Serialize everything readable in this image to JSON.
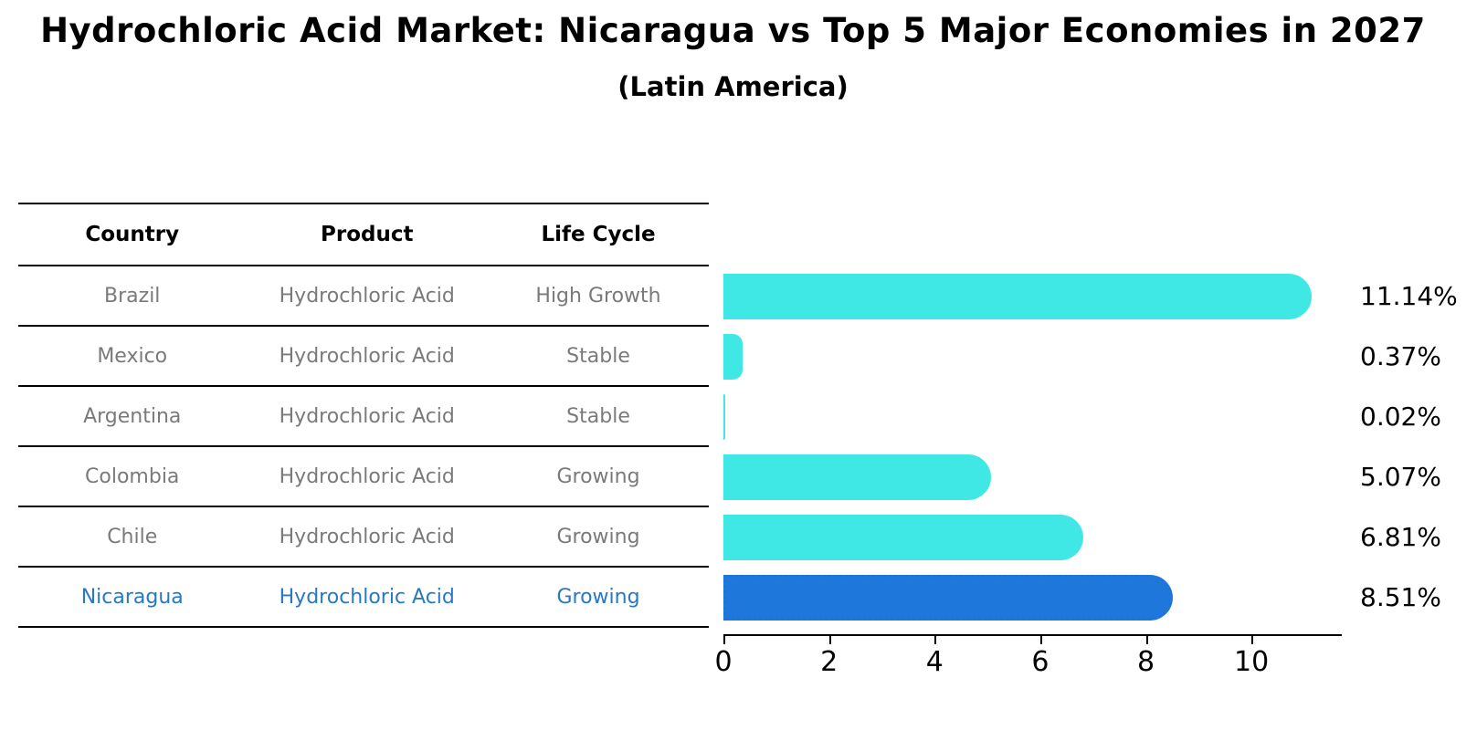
{
  "title": "Hydrochloric Acid Market: Nicaragua vs Top 5 Major Economies in 2027",
  "subtitle": "(Latin America)",
  "table": {
    "headers": [
      "Country",
      "Product",
      "Life Cycle"
    ],
    "rows": [
      {
        "country": "Brazil",
        "product": "Hydrochloric Acid",
        "life_cycle": "High Growth"
      },
      {
        "country": "Mexico",
        "product": "Hydrochloric Acid",
        "life_cycle": "Stable"
      },
      {
        "country": "Argentina",
        "product": "Hydrochloric Acid",
        "life_cycle": "Stable"
      },
      {
        "country": "Colombia",
        "product": "Hydrochloric Acid",
        "life_cycle": "Growing"
      },
      {
        "country": "Chile",
        "product": "Hydrochloric Acid",
        "life_cycle": "Growing"
      },
      {
        "country": "Nicaragua",
        "product": "Hydrochloric Acid",
        "life_cycle": "Growing"
      }
    ],
    "highlight_row_index": 5
  },
  "chart_data": {
    "type": "bar",
    "orientation": "horizontal",
    "title": "Hydrochloric Acid Market: Nicaragua vs Top 5 Major Economies in 2027",
    "subtitle": "(Latin America)",
    "categories": [
      "Brazil",
      "Mexico",
      "Argentina",
      "Colombia",
      "Chile",
      "Nicaragua"
    ],
    "values": [
      11.14,
      0.37,
      0.02,
      5.07,
      6.81,
      8.51
    ],
    "value_labels": [
      "11.14%",
      "0.37%",
      "0.02%",
      "5.07%",
      "6.81%",
      "8.51%"
    ],
    "x_ticks": [
      0,
      2,
      4,
      6,
      8,
      10
    ],
    "xlim": [
      0,
      11.71
    ],
    "grid": false,
    "legend": false,
    "highlight_index": 5
  },
  "colors": {
    "bar": "#40E8E5",
    "highlight_bar": "#1E78DC",
    "highlight_bar_border": "#1C74D8",
    "highlight_text": "#2878C8",
    "table_text": "#7a7a7a",
    "axis": "#000000"
  }
}
